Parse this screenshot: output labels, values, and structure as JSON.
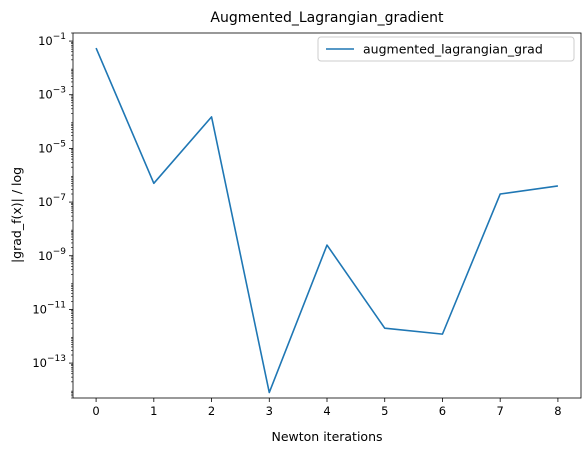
{
  "chart_data": {
    "type": "line",
    "title": "Augmented_Lagrangian_gradient",
    "xlabel": "Newton iterations",
    "ylabel": "|grad_f(x)| / log",
    "yscale": "log",
    "x": [
      0,
      1,
      2,
      3,
      4,
      5,
      6,
      7,
      8
    ],
    "xticks": [
      0,
      1,
      2,
      3,
      4,
      5,
      6,
      7,
      8
    ],
    "xlim": [
      -0.4,
      8.4
    ],
    "ylim": [
      5e-15,
      0.2
    ],
    "yticks": [
      {
        "value": 0.1,
        "base": "10",
        "exp": "−1"
      },
      {
        "value": 0.001,
        "base": "10",
        "exp": "−3"
      },
      {
        "value": 1e-05,
        "base": "10",
        "exp": "−5"
      },
      {
        "value": 1e-07,
        "base": "10",
        "exp": "−7"
      },
      {
        "value": 1e-09,
        "base": "10",
        "exp": "−9"
      },
      {
        "value": 1e-11,
        "base": "10",
        "exp": "−11"
      },
      {
        "value": 1e-13,
        "base": "10",
        "exp": "−13"
      }
    ],
    "series": [
      {
        "name": "augmented_lagrangian_grad",
        "color": "#1f77b4",
        "values": [
          0.055,
          5e-07,
          0.00015,
          8e-15,
          2.5e-09,
          2e-12,
          1.2e-12,
          2e-07,
          4e-07
        ]
      }
    ],
    "grid": false,
    "legend": "top-right"
  }
}
